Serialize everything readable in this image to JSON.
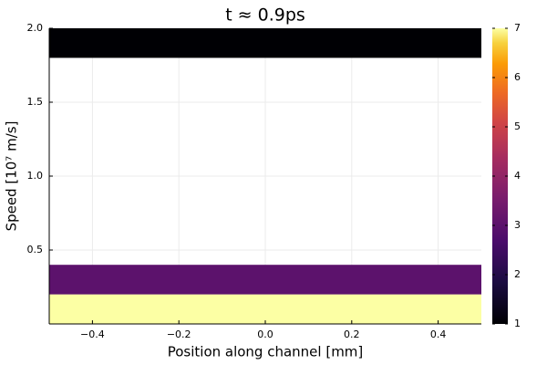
{
  "chart_data": {
    "type": "heatmap",
    "title": "t ≈ 0.9ps",
    "xlabel": "Position along channel [mm]",
    "ylabel": "Speed [10⁷ m/s]",
    "xlim": [
      -0.5,
      0.5
    ],
    "ylim": [
      0.0,
      2.0
    ],
    "xticks": [
      -0.4,
      -0.2,
      0.0,
      0.2,
      0.4
    ],
    "xtick_labels": [
      "−0.4",
      "−0.2",
      "0.0",
      "0.2",
      "0.4"
    ],
    "yticks": [
      0.5,
      1.0,
      1.5,
      2.0
    ],
    "ytick_labels": [
      "0.5",
      "1.0",
      "1.5",
      "2.0"
    ],
    "grid": true,
    "colormap": "inferno",
    "color_range": [
      1,
      7
    ],
    "colorbar_ticks": [
      1,
      2,
      3,
      4,
      5,
      6,
      7
    ],
    "colorbar_tick_labels": [
      "1",
      "2",
      "3",
      "4",
      "5",
      "6",
      "7"
    ],
    "bands": [
      {
        "y0": 0.0,
        "y1": 0.2,
        "value": 7
      },
      {
        "y0": 0.2,
        "y1": 0.4,
        "value": 3
      },
      {
        "y0": 1.8,
        "y1": 2.0,
        "value": 1
      }
    ]
  }
}
